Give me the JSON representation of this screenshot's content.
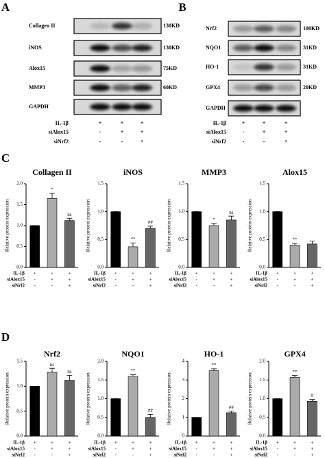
{
  "blots": [
    {
      "label": "A",
      "rows": [
        {
          "name": "Collagen II",
          "size": "130KD"
        },
        {
          "name": "iNOS",
          "size": "130KD"
        },
        {
          "name": "Alox15",
          "size": "75KD"
        },
        {
          "name": "MMP3",
          "size": "60KD"
        },
        {
          "name": "GAPDH"
        }
      ],
      "conditions": [
        {
          "name": "IL-1β",
          "signs": [
            "+",
            "+",
            "+"
          ]
        },
        {
          "name": "siAlox15",
          "signs": [
            "-",
            "+",
            "+"
          ]
        },
        {
          "name": "siNrf2",
          "signs": [
            "-",
            "-",
            "+"
          ]
        }
      ]
    },
    {
      "label": "B",
      "rows": [
        {
          "name": "Nrf2",
          "size": "100KD"
        },
        {
          "name": "NQO1",
          "size": "31KD"
        },
        {
          "name": "HO-1",
          "size": "31KD"
        },
        {
          "name": "GPX4",
          "size": "20KD"
        },
        {
          "name": "GAPDH"
        }
      ],
      "conditions": [
        {
          "name": "IL-1β",
          "signs": [
            "+",
            "+",
            "+"
          ]
        },
        {
          "name": "siAlox15",
          "signs": [
            "-",
            "+",
            "+"
          ]
        },
        {
          "name": "siNrf2",
          "signs": [
            "-",
            "-",
            "+"
          ]
        }
      ]
    }
  ],
  "panel_labels": [
    "C",
    "D"
  ],
  "chart_data": [
    {
      "type": "bar",
      "title": "Collagen II",
      "y_label": "Relative protein expression",
      "values": [
        1,
        1.65,
        1.12
      ],
      "errors": [
        0,
        0.12,
        0.05
      ],
      "annotations": [
        null,
        "*",
        "ns"
      ],
      "colors": [
        "#000000",
        "#aaaaaa",
        "#666666"
      ],
      "ylim": [
        0,
        2
      ],
      "yticks": [
        {
          "value": 0,
          "label": "0.0"
        },
        0.5,
        {
          "value": 1,
          "label": "1.0"
        },
        1.5,
        {
          "value": 2,
          "label": "2.0"
        }
      ],
      "conditions": [
        {
          "name": "IL-1β",
          "signs": [
            "+",
            "+",
            "+"
          ]
        },
        {
          "name": "siAlox15",
          "signs": [
            "-",
            "+",
            "+"
          ]
        },
        {
          "name": "siNrf2",
          "signs": [
            "-",
            "-",
            "+"
          ]
        }
      ]
    },
    {
      "type": "bar",
      "title": "iNOS",
      "y_label": "Relative protein expression",
      "values": [
        1,
        0.37,
        0.7
      ],
      "errors": [
        0,
        0.07,
        0.04
      ],
      "annotations": [
        null,
        "**",
        "##"
      ],
      "colors": [
        "#000000",
        "#aaaaaa",
        "#666666"
      ],
      "ylim": [
        0,
        1.5
      ],
      "yticks": [
        {
          "value": 0,
          "label": "0.0"
        },
        0.5,
        {
          "value": 1,
          "label": "1.0"
        },
        1.5
      ],
      "conditions": [
        {
          "name": "IL-1β",
          "signs": [
            "+",
            "+",
            "+"
          ]
        },
        {
          "name": "siAlox15",
          "signs": [
            "-",
            "+",
            "+"
          ]
        },
        {
          "name": "siNrf2",
          "signs": [
            "-",
            "-",
            "+"
          ]
        }
      ]
    },
    {
      "type": "bar",
      "title": "MMP3",
      "y_label": "Relative protein expression",
      "values": [
        1,
        0.75,
        0.85
      ],
      "errors": [
        0,
        0.04,
        0.07
      ],
      "annotations": [
        null,
        "*",
        "ns"
      ],
      "colors": [
        "#000000",
        "#aaaaaa",
        "#666666"
      ],
      "ylim": [
        0,
        1.5
      ],
      "yticks": [
        {
          "value": 0,
          "label": "0.0"
        },
        0.5,
        {
          "value": 1,
          "label": "1.0"
        },
        1.5
      ],
      "conditions": [
        {
          "name": "IL-1β",
          "signs": [
            "+",
            "+",
            "+"
          ]
        },
        {
          "name": "siAlox15",
          "signs": [
            "-",
            "+",
            "+"
          ]
        },
        {
          "name": "siNrf2",
          "signs": [
            "-",
            "-",
            "+"
          ]
        }
      ]
    },
    {
      "type": "bar",
      "title": "Alox15",
      "y_label": "Relative protein expression",
      "values": [
        1,
        0.4,
        0.42
      ],
      "errors": [
        0,
        0.03,
        0.05
      ],
      "annotations": [
        null,
        "**",
        null
      ],
      "colors": [
        "#000000",
        "#aaaaaa",
        "#666666"
      ],
      "ylim": [
        0,
        1.5
      ],
      "yticks": [
        {
          "value": 0,
          "label": "0.0"
        },
        0.5,
        {
          "value": 1,
          "label": "1.0"
        },
        1.5
      ],
      "conditions": [
        {
          "name": "IL-1β",
          "signs": [
            "+",
            "+",
            "+"
          ]
        },
        {
          "name": "siAlox15",
          "signs": [
            "-",
            "+",
            "+"
          ]
        },
        {
          "name": "siNrf2",
          "signs": [
            "-",
            "-",
            "+"
          ]
        }
      ]
    },
    {
      "type": "bar",
      "title": "Nrf2",
      "y_label": "Relative protein expression",
      "values": [
        1,
        1.28,
        1.12
      ],
      "errors": [
        0,
        0.08,
        0.1
      ],
      "annotations": [
        null,
        "ns",
        "ns"
      ],
      "colors": [
        "#000000",
        "#aaaaaa",
        "#666666"
      ],
      "ylim": [
        0,
        1.5
      ],
      "yticks": [
        {
          "value": 0,
          "label": "0.0"
        },
        0.5,
        {
          "value": 1,
          "label": "1.0"
        },
        1.5
      ],
      "conditions": [
        {
          "name": "IL-1β",
          "signs": [
            "+",
            "+",
            "+"
          ]
        },
        {
          "name": "siAlox15",
          "signs": [
            "-",
            "+",
            "+"
          ]
        },
        {
          "name": "siNrf2",
          "signs": [
            "-",
            "-",
            "+"
          ]
        }
      ]
    },
    {
      "type": "bar",
      "title": "NQO1",
      "y_label": "Relative protein expression",
      "values": [
        1,
        1.6,
        0.5
      ],
      "errors": [
        0,
        0.04,
        0.08
      ],
      "annotations": [
        null,
        "**",
        "##"
      ],
      "colors": [
        "#000000",
        "#aaaaaa",
        "#666666"
      ],
      "ylim": [
        0,
        2
      ],
      "yticks": [
        {
          "value": 0,
          "label": "0.0"
        },
        0.5,
        {
          "value": 1,
          "label": "1.0"
        },
        1.5,
        {
          "value": 2,
          "label": "2.0"
        }
      ],
      "conditions": [
        {
          "name": "IL-1β",
          "signs": [
            "+",
            "+",
            "+"
          ]
        },
        {
          "name": "siAlox15",
          "signs": [
            "-",
            "+",
            "+"
          ]
        },
        {
          "name": "siNrf2",
          "signs": [
            "-",
            "-",
            "+"
          ]
        }
      ]
    },
    {
      "type": "bar",
      "title": "HO-1",
      "y_label": "Relative protein expression",
      "values": [
        1,
        3.5,
        1.25
      ],
      "errors": [
        0,
        0.1,
        0.08
      ],
      "annotations": [
        null,
        "**",
        "##"
      ],
      "colors": [
        "#000000",
        "#aaaaaa",
        "#666666"
      ],
      "ylim": [
        0,
        4
      ],
      "yticks": [
        0,
        1,
        2,
        3,
        4
      ],
      "conditions": [
        {
          "name": "IL-1β",
          "signs": [
            "+",
            "+",
            "+"
          ]
        },
        {
          "name": "siAlox15",
          "signs": [
            "-",
            "+",
            "+"
          ]
        },
        {
          "name": "siNrf2",
          "signs": [
            "-",
            "-",
            "+"
          ]
        }
      ]
    },
    {
      "type": "bar",
      "title": "GPX4",
      "y_label": "Relative protein expression",
      "values": [
        1,
        1.57,
        0.93
      ],
      "errors": [
        0,
        0.05,
        0.05
      ],
      "annotations": [
        null,
        "**",
        "#"
      ],
      "colors": [
        "#000000",
        "#aaaaaa",
        "#666666"
      ],
      "ylim": [
        0,
        2
      ],
      "yticks": [
        {
          "value": 0,
          "label": "0.0"
        },
        0.5,
        {
          "value": 1,
          "label": "1.0"
        },
        1.5,
        {
          "value": 2,
          "label": "2.0"
        }
      ],
      "conditions": [
        {
          "name": "IL-1β",
          "signs": [
            "+",
            "+",
            "+"
          ]
        },
        {
          "name": "siAlox15",
          "signs": [
            "-",
            "+",
            "+"
          ]
        },
        {
          "name": "siNrf2",
          "signs": [
            "-",
            "-",
            "+"
          ]
        }
      ]
    }
  ]
}
